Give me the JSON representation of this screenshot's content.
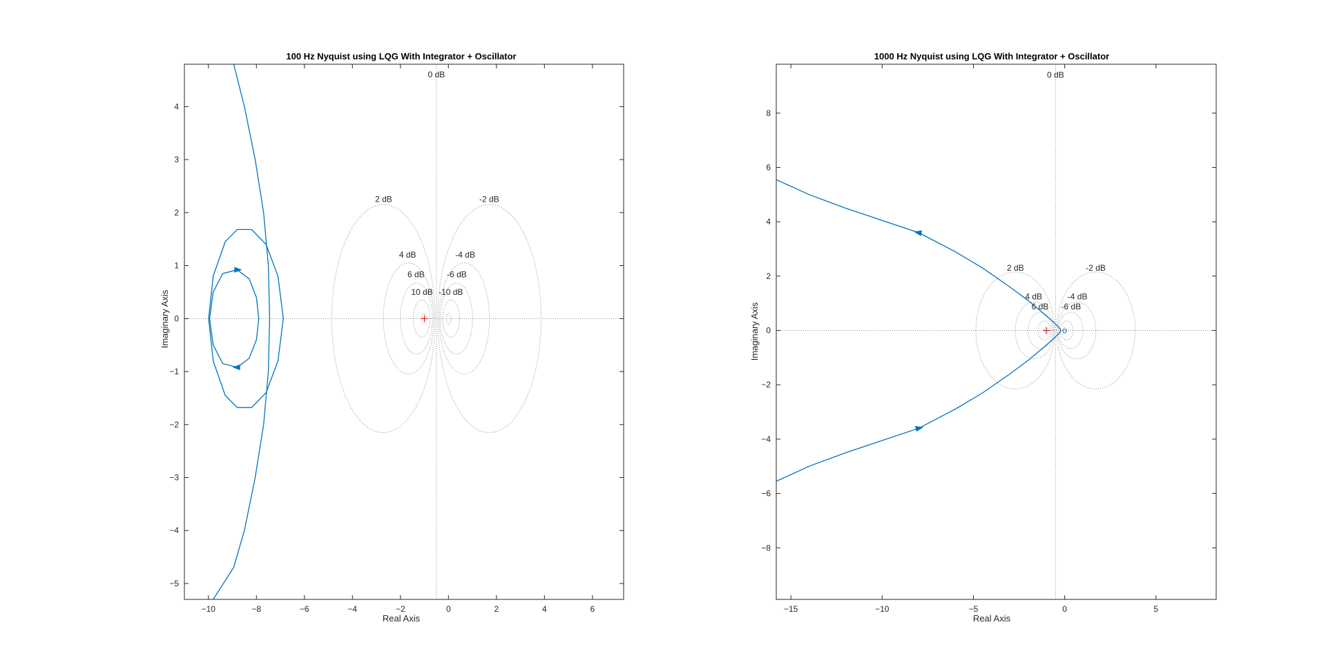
{
  "chart_data": [
    {
      "type": "line",
      "plot": "nyquist",
      "title": "100 Hz Nyquist using LQG With Integrator + Oscillator",
      "xlabel": "Real Axis",
      "ylabel": "Imaginary Axis",
      "xlim": [
        -11,
        7.3
      ],
      "ylim": [
        -5.3,
        4.8
      ],
      "xticks": [
        -10,
        -8,
        -6,
        -4,
        -2,
        0,
        2,
        4,
        6
      ],
      "yticks": [
        -5,
        -4,
        -3,
        -2,
        -1,
        0,
        1,
        2,
        3,
        4
      ],
      "grid_on": true,
      "grid_labels": [
        {
          "text": "0 dB",
          "x": -0.5,
          "y": 4.55
        },
        {
          "text": "2 dB",
          "x": -2.7,
          "y": 2.2
        },
        {
          "text": "-2 dB",
          "x": 1.7,
          "y": 2.2
        },
        {
          "text": "4 dB",
          "x": -1.7,
          "y": 1.15
        },
        {
          "text": "-4 dB",
          "x": 0.7,
          "y": 1.15
        },
        {
          "text": "6 dB",
          "x": -1.35,
          "y": 0.78
        },
        {
          "text": "-6 dB",
          "x": 0.35,
          "y": 0.78
        },
        {
          "text": "10 dB",
          "x": -1.1,
          "y": 0.45
        },
        {
          "text": "-10 dB",
          "x": 0.1,
          "y": 0.45
        }
      ],
      "series_color": "#0072BD",
      "critical_point_color": "#D62728",
      "critical_point": [
        -1,
        0
      ],
      "series": [
        {
          "x": [
            -9.99,
            -9.8,
            -9.3,
            -8.8,
            -8.2,
            -7.6,
            -7.1,
            -6.88,
            -7.1,
            -7.6,
            -8.2,
            -8.8,
            -9.3,
            -9.8,
            -9.99
          ],
          "y": [
            0,
            0.8,
            1.45,
            1.68,
            1.68,
            1.4,
            0.8,
            0,
            -0.8,
            -1.4,
            -1.68,
            -1.68,
            -1.45,
            -0.8,
            0
          ]
        },
        {
          "x": [
            -9.95,
            -9.8,
            -9.4,
            -8.8,
            -8.3,
            -8.0,
            -7.9,
            -8.0,
            -8.3,
            -8.8,
            -9.4,
            -9.8,
            -9.95
          ],
          "y": [
            0,
            0.5,
            0.85,
            0.92,
            0.75,
            0.4,
            0,
            -0.4,
            -0.75,
            -0.92,
            -0.85,
            -0.5,
            0
          ]
        },
        {
          "x": [
            -9.0,
            -8.5,
            -8.05,
            -7.7,
            -7.5,
            -7.45,
            -7.5,
            -7.7,
            -8.05,
            -8.5,
            -8.95,
            -9.8
          ],
          "y": [
            4.9,
            4.0,
            3.0,
            2.0,
            1.0,
            0,
            -1.0,
            -2.0,
            -3.0,
            -4.0,
            -4.7,
            -5.3
          ]
        }
      ],
      "arrows": [
        {
          "x": -8.8,
          "y": 0.92,
          "dx": 1,
          "dy": 0
        },
        {
          "x": -8.8,
          "y": -0.92,
          "dx": -1,
          "dy": 0
        }
      ]
    },
    {
      "type": "line",
      "plot": "nyquist",
      "title": "1000 Hz Nyquist using LQG With Integrator + Oscillator",
      "xlabel": "Real Axis",
      "ylabel": "Imaginary Axis",
      "xlim": [
        -15.8,
        8.3
      ],
      "ylim": [
        -9.9,
        9.8
      ],
      "xticks": [
        -15,
        -10,
        -5,
        0,
        5
      ],
      "yticks": [
        -8,
        -6,
        -4,
        -2,
        0,
        2,
        4,
        6,
        8
      ],
      "grid_on": true,
      "grid_labels": [
        {
          "text": "0 dB",
          "x": -0.5,
          "y": 9.3
        },
        {
          "text": "2 dB",
          "x": -2.7,
          "y": 2.2
        },
        {
          "text": "-2 dB",
          "x": 1.7,
          "y": 2.2
        },
        {
          "text": "4 dB",
          "x": -1.7,
          "y": 1.15
        },
        {
          "text": "-4 dB",
          "x": 0.7,
          "y": 1.15
        },
        {
          "text": "6 dB",
          "x": -1.35,
          "y": 0.78
        },
        {
          "text": "-6 dB",
          "x": 0.35,
          "y": 0.78
        }
      ],
      "series_color": "#0072BD",
      "critical_point_color": "#D62728",
      "critical_point": [
        -1,
        0
      ],
      "series": [
        {
          "x": [
            -15.8,
            -14.0,
            -12.0,
            -10.0,
            -8.0,
            -6.0,
            -4.5,
            -3.0,
            -2.0,
            -1.2,
            -0.6,
            -0.3,
            -0.2,
            -0.3,
            -0.6,
            -1.2,
            -2.0,
            -3.0,
            -4.5,
            -6.0,
            -8.0,
            -10.0,
            -12.0,
            -14.0,
            -15.8
          ],
          "y": [
            5.55,
            5.0,
            4.5,
            4.05,
            3.6,
            2.9,
            2.3,
            1.6,
            1.1,
            0.65,
            0.3,
            0.1,
            0,
            -0.1,
            -0.3,
            -0.65,
            -1.1,
            -1.6,
            -2.3,
            -2.9,
            -3.6,
            -4.05,
            -4.5,
            -5.0,
            -5.55
          ]
        }
      ],
      "arrows": [
        {
          "x": -8.0,
          "y": 3.6,
          "dx": -1,
          "dy": 0.2
        },
        {
          "x": -8.0,
          "y": -3.6,
          "dx": 1,
          "dy": 0.2
        }
      ],
      "markers": [
        {
          "text": "o",
          "x": 0.0,
          "y": 0.0
        }
      ]
    }
  ]
}
